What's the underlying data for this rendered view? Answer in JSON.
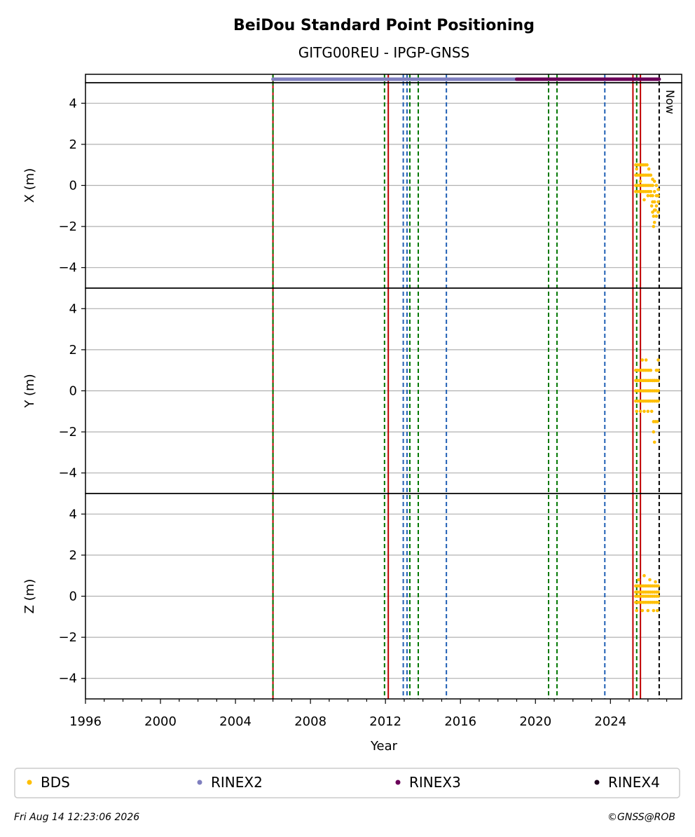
{
  "chart_data": {
    "type": "scatter",
    "title": "BeiDou Standard Point Positioning",
    "subtitle": "GITG00REU - IPGP-GNSS",
    "xlabel": "Year",
    "xlim": [
      1996,
      2027.8
    ],
    "x_ticks": [
      1996,
      2000,
      2004,
      2008,
      2012,
      2016,
      2020,
      2024
    ],
    "ylim": [
      -5,
      5
    ],
    "y_ticks": [
      -4,
      -2,
      0,
      2,
      4
    ],
    "grid": "horizontal",
    "now_label": "Now",
    "now_year": 2026.6,
    "panels": [
      {
        "ylabel": "X (m)",
        "series_name": "BDS",
        "x": [
          2025.35,
          2025.45,
          2025.55,
          2025.65,
          2025.75,
          2025.85,
          2025.95,
          2026.05,
          2026.15,
          2026.25,
          2026.35,
          2026.45,
          2026.55,
          2025.35,
          2025.45,
          2025.55,
          2025.65,
          2025.75,
          2025.85,
          2025.95,
          2026.05,
          2026.15,
          2026.25,
          2026.35,
          2026.45,
          2026.55,
          2025.35,
          2025.45,
          2025.55,
          2025.65,
          2025.75,
          2025.85,
          2025.95,
          2026.05,
          2026.15,
          2026.25,
          2026.35,
          2026.45,
          2026.55,
          2025.35,
          2025.45,
          2025.55,
          2025.65,
          2025.75,
          2025.85,
          2025.95,
          2026.05,
          2026.15,
          2026.25,
          2026.35,
          2026.45,
          2026.55,
          2025.4,
          2025.6,
          2025.8,
          2026.0,
          2026.2,
          2026.3,
          2026.4,
          2026.5,
          2026.25,
          2026.35,
          2026.3
        ],
        "y": [
          1.0,
          1.0,
          1.0,
          1.0,
          1.0,
          1.0,
          1.0,
          0.8,
          0.5,
          0.3,
          0.2,
          0.0,
          -0.2,
          0.5,
          0.5,
          0.5,
          0.5,
          0.5,
          0.5,
          0.5,
          0.5,
          0.0,
          0.0,
          -0.3,
          -0.5,
          -0.5,
          0.0,
          0.0,
          0.0,
          0.0,
          0.0,
          0.0,
          0.0,
          0.0,
          -0.3,
          -0.5,
          -0.8,
          -1.0,
          -0.8,
          -0.3,
          -0.3,
          -0.3,
          -0.3,
          -0.3,
          -0.3,
          -0.3,
          -0.3,
          -0.5,
          -0.8,
          -1.2,
          -1.5,
          -1.3,
          0.8,
          0.2,
          -0.7,
          -0.5,
          -1.0,
          -1.5,
          -1.2,
          -0.5,
          -1.3,
          -1.8,
          -2.0
        ]
      },
      {
        "ylabel": "Y (m)",
        "series_name": "BDS",
        "x": [
          2025.35,
          2025.45,
          2025.55,
          2025.65,
          2025.75,
          2025.85,
          2025.95,
          2026.05,
          2026.15,
          2026.25,
          2026.35,
          2026.45,
          2026.55,
          2025.35,
          2025.45,
          2025.55,
          2025.65,
          2025.75,
          2025.85,
          2025.95,
          2026.05,
          2026.15,
          2026.25,
          2026.35,
          2026.45,
          2026.55,
          2025.35,
          2025.45,
          2025.55,
          2025.65,
          2025.75,
          2025.85,
          2025.95,
          2026.05,
          2026.15,
          2026.25,
          2026.35,
          2026.45,
          2026.55,
          2025.35,
          2025.45,
          2025.55,
          2025.65,
          2025.75,
          2025.85,
          2025.95,
          2026.05,
          2026.15,
          2026.25,
          2026.35,
          2026.45,
          2026.55,
          2025.4,
          2025.6,
          2025.8,
          2026.0,
          2026.2,
          2026.3,
          2026.4,
          2026.5,
          2026.3,
          2026.35,
          2025.7,
          2025.9,
          2026.55
        ],
        "y": [
          1.0,
          1.0,
          1.0,
          1.0,
          1.0,
          1.0,
          1.0,
          1.0,
          1.0,
          0.5,
          0.5,
          1.0,
          1.0,
          0.5,
          0.5,
          0.5,
          0.5,
          0.5,
          0.5,
          0.5,
          0.5,
          0.5,
          0.5,
          0.5,
          0.5,
          0.5,
          0.0,
          0.0,
          0.0,
          0.0,
          0.0,
          0.0,
          0.0,
          0.0,
          0.0,
          0.0,
          0.0,
          0.0,
          0.0,
          -0.5,
          -0.5,
          -0.5,
          -0.5,
          -0.5,
          -0.5,
          -0.5,
          -0.5,
          -0.5,
          -0.5,
          -0.5,
          -0.5,
          -0.5,
          -1.0,
          -1.0,
          -1.0,
          -1.0,
          -1.0,
          -1.5,
          -1.5,
          -1.5,
          -2.0,
          -2.5,
          1.5,
          1.5,
          1.5
        ]
      },
      {
        "ylabel": "Z (m)",
        "series_name": "BDS",
        "x": [
          2025.35,
          2025.45,
          2025.55,
          2025.65,
          2025.75,
          2025.85,
          2025.95,
          2026.05,
          2026.15,
          2026.25,
          2026.35,
          2026.45,
          2026.55,
          2025.35,
          2025.45,
          2025.55,
          2025.65,
          2025.75,
          2025.85,
          2025.95,
          2026.05,
          2026.15,
          2026.25,
          2026.35,
          2026.45,
          2026.55,
          2025.35,
          2025.45,
          2025.55,
          2025.65,
          2025.75,
          2025.85,
          2025.95,
          2026.05,
          2026.15,
          2026.25,
          2026.35,
          2026.45,
          2026.55,
          2025.35,
          2025.45,
          2025.55,
          2025.65,
          2025.75,
          2025.85,
          2025.95,
          2026.05,
          2026.15,
          2026.25,
          2026.35,
          2026.45,
          2026.55,
          2025.4,
          2025.7,
          2026.0,
          2026.3,
          2026.5,
          2025.5,
          2025.8,
          2026.1,
          2026.4
        ],
        "y": [
          0.5,
          0.5,
          0.5,
          0.5,
          0.5,
          0.5,
          0.5,
          0.5,
          0.5,
          0.5,
          0.5,
          0.5,
          0.5,
          0.2,
          0.2,
          0.2,
          0.2,
          0.2,
          0.2,
          0.2,
          0.2,
          0.2,
          0.2,
          0.2,
          0.2,
          0.2,
          0.0,
          0.0,
          0.0,
          0.0,
          0.0,
          0.0,
          0.0,
          0.0,
          0.0,
          0.0,
          0.0,
          0.0,
          0.0,
          -0.3,
          -0.3,
          -0.3,
          -0.3,
          -0.3,
          -0.3,
          -0.3,
          -0.3,
          -0.3,
          -0.3,
          -0.3,
          -0.3,
          -0.3,
          -0.7,
          -0.7,
          -0.7,
          -0.7,
          -0.7,
          0.8,
          1.0,
          0.8,
          0.7
        ]
      }
    ],
    "vertical_lines": [
      {
        "x": 2006.0,
        "style": "solid",
        "color": "#c00000"
      },
      {
        "x": 2006.0,
        "style": "dashed",
        "color": "#007700"
      },
      {
        "x": 2011.95,
        "style": "dashed",
        "color": "#007700"
      },
      {
        "x": 2012.15,
        "style": "solid",
        "color": "#c00000"
      },
      {
        "x": 2012.95,
        "style": "dashed",
        "color": "#1f5fb4"
      },
      {
        "x": 2013.15,
        "style": "dashed",
        "color": "#1f5fb4"
      },
      {
        "x": 2013.3,
        "style": "dashed",
        "color": "#007700"
      },
      {
        "x": 2013.75,
        "style": "dashed",
        "color": "#007700"
      },
      {
        "x": 2015.25,
        "style": "dashed",
        "color": "#1f5fb4"
      },
      {
        "x": 2020.7,
        "style": "dashed",
        "color": "#007700"
      },
      {
        "x": 2021.15,
        "style": "dashed",
        "color": "#007700"
      },
      {
        "x": 2023.7,
        "style": "dashed",
        "color": "#1f5fb4"
      },
      {
        "x": 2025.2,
        "style": "solid",
        "color": "#c00000"
      },
      {
        "x": 2025.4,
        "style": "dashed",
        "color": "#007700"
      },
      {
        "x": 2025.6,
        "style": "solid",
        "color": "#c00000"
      },
      {
        "x": 2026.6,
        "style": "dashed",
        "color": "#000000"
      }
    ],
    "rinex_bars": [
      {
        "name": "RINEX2",
        "from": 2006.0,
        "to": 2026.6,
        "color": "#7f7fbf"
      },
      {
        "name": "RINEX3",
        "from": 2019.0,
        "to": 2026.6,
        "color": "#6a0059"
      }
    ],
    "legend": {
      "placement": "bottom",
      "entries": [
        {
          "name": "BDS",
          "color": "#ffbf00"
        },
        {
          "name": "RINEX2",
          "color": "#7f7fbf"
        },
        {
          "name": "RINEX3",
          "color": "#6a0059"
        },
        {
          "name": "RINEX4",
          "color": "#1a001a"
        }
      ]
    },
    "colors": {
      "bds": "#ffbf00",
      "grid": "#b0b0b0"
    }
  },
  "footer": {
    "timestamp": "Fri Aug 14 12:23:06 2026",
    "credit": "©GNSS@ROB"
  }
}
